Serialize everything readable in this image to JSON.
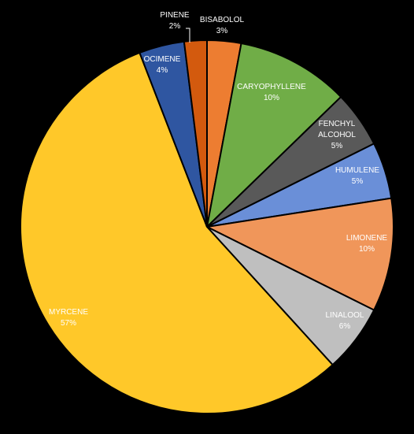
{
  "chart_data": {
    "type": "pie",
    "title": "",
    "start_angle_deg": 0,
    "direction": "clockwise",
    "slices": [
      {
        "label": [
          "BISABOLOL"
        ],
        "percent_text": "3%",
        "value": 3,
        "color": "#ED7D31"
      },
      {
        "label": [
          "CARYOPHYLLENE"
        ],
        "percent_text": "10%",
        "value": 10,
        "color": "#70AD47"
      },
      {
        "label": [
          "FENCHYL",
          "ALCOHOL"
        ],
        "percent_text": "5%",
        "value": 5,
        "color": "#595959"
      },
      {
        "label": [
          "HUMULENE"
        ],
        "percent_text": "5%",
        "value": 5,
        "color": "#6A8FD8"
      },
      {
        "label": [
          "LIMONENE"
        ],
        "percent_text": "10%",
        "value": 10,
        "color": "#F0965A"
      },
      {
        "label": [
          "LINALOOL"
        ],
        "percent_text": "6%",
        "value": 6,
        "color": "#BFBFBF"
      },
      {
        "label": [
          "MYRCENE"
        ],
        "percent_text": "57%",
        "value": 57,
        "color": "#FFC829"
      },
      {
        "label": [
          "OCIMENE"
        ],
        "percent_text": "4%",
        "value": 4,
        "color": "#2F56A1"
      },
      {
        "label": [
          "PINENE"
        ],
        "percent_text": "2%",
        "value": 2,
        "color": "#D35A0E"
      }
    ]
  }
}
